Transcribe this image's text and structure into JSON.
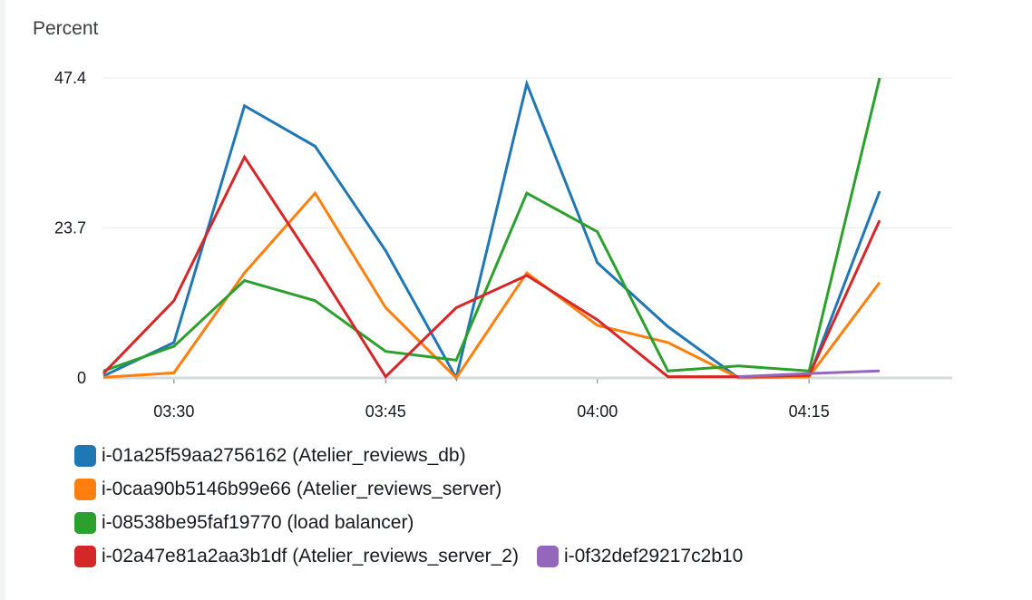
{
  "unit_label": "Percent",
  "chart_data": {
    "type": "line",
    "ylabel": "Percent",
    "ylim": [
      0,
      47.4
    ],
    "yticks": [
      "0",
      "23.7",
      "47.4"
    ],
    "y_tick_values": [
      0,
      23.7,
      47.4
    ],
    "x_tick_labels": [
      "03:30",
      "03:45",
      "04:00",
      "04:15"
    ],
    "x_tick_minutes": [
      210,
      225,
      240,
      255
    ],
    "x_minutes": [
      205,
      210,
      215,
      220,
      225,
      230,
      235,
      240,
      245,
      250,
      255,
      260
    ],
    "x": [
      "03:25",
      "03:30",
      "03:35",
      "03:40",
      "03:45",
      "03:50",
      "03:55",
      "04:00",
      "04:05",
      "04:10",
      "04:15",
      "04:20"
    ],
    "grid": true,
    "legend_position": "bottom",
    "series": [
      {
        "name": "i-01a25f59aa2756162 (Atelier_reviews_db)",
        "color": "#1f77b4",
        "values": [
          0.3,
          5.6,
          43.0,
          36.6,
          20.1,
          0.0,
          46.5,
          18.2,
          8.1,
          0.0,
          0.2,
          29.5
        ]
      },
      {
        "name": "i-0caa90b5146b99e66 (Atelier_reviews_server)",
        "color": "#ff7f0e",
        "values": [
          0.1,
          0.8,
          16.6,
          29.2,
          11.1,
          0.0,
          16.6,
          8.3,
          5.6,
          0.0,
          0.2,
          15.1
        ]
      },
      {
        "name": "i-08538be95faf19770 (load balancer)",
        "color": "#2ca02c",
        "values": [
          1.1,
          5.0,
          15.4,
          12.2,
          4.2,
          2.8,
          29.2,
          23.1,
          1.1,
          1.9,
          1.1,
          47.4
        ]
      },
      {
        "name": "i-02a47e81a2aa3b1df (Atelier_reviews_server_2)",
        "color": "#d62728",
        "values": [
          0.7,
          12.2,
          34.9,
          17.9,
          0.2,
          11.1,
          16.2,
          9.2,
          0.2,
          0.2,
          0.4,
          24.9
        ]
      },
      {
        "name": "i-0f32def29217c2b10",
        "color": "#9467bd",
        "values": [
          null,
          null,
          null,
          null,
          null,
          null,
          null,
          null,
          null,
          0.2,
          0.7,
          1.1
        ]
      }
    ]
  },
  "legend_rows": [
    [
      {
        "label": "i-01a25f59aa2756162 (Atelier_reviews_db)",
        "color": "#1f77b4"
      }
    ],
    [
      {
        "label": "i-0caa90b5146b99e66 (Atelier_reviews_server)",
        "color": "#ff7f0e"
      }
    ],
    [
      {
        "label": "i-08538be95faf19770 (load balancer)",
        "color": "#2ca02c"
      }
    ],
    [
      {
        "label": "i-02a47e81a2aa3b1df (Atelier_reviews_server_2)",
        "color": "#d62728"
      },
      {
        "label": "i-0f32def29217c2b10",
        "color": "#9467bd"
      }
    ]
  ]
}
